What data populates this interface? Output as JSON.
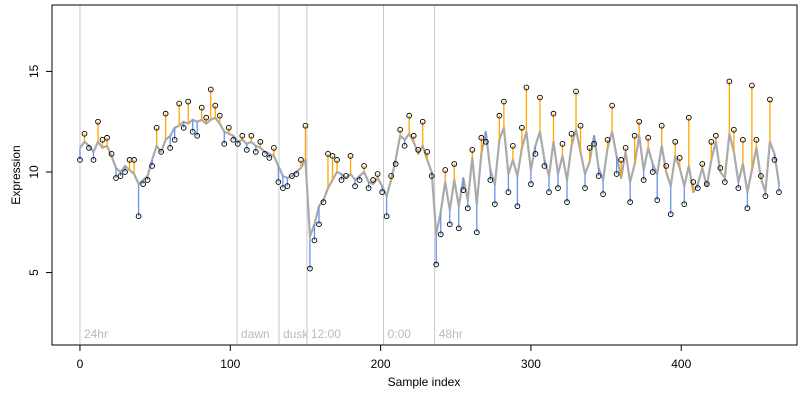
{
  "chart_data": {
    "type": "residual-scatter",
    "x_label": "Sample index",
    "y_label": "Expression",
    "xlim": [
      -18.6,
      477
    ],
    "ylim": [
      1.4,
      18.3
    ],
    "xticks": [
      0,
      100,
      200,
      300,
      400
    ],
    "yticks": [
      5,
      10,
      15
    ],
    "x": [
      0,
      3,
      6,
      9,
      12,
      15,
      18,
      21,
      24,
      27,
      30,
      33,
      36,
      39,
      42,
      45,
      48,
      51,
      54,
      57,
      60,
      63,
      66,
      69,
      72,
      75,
      78,
      81,
      84,
      87,
      90,
      93,
      96,
      99,
      102,
      105,
      108,
      111,
      114,
      117,
      120,
      123,
      126,
      129,
      132,
      135,
      138,
      141,
      144,
      147,
      150,
      153,
      156,
      159,
      162,
      165,
      168,
      171,
      174,
      177,
      180,
      183,
      186,
      189,
      192,
      195,
      198,
      201,
      204,
      207,
      210,
      213,
      216,
      219,
      222,
      225,
      228,
      231,
      234,
      237,
      240,
      243,
      246,
      249,
      252,
      255,
      258,
      261,
      264,
      267,
      270,
      273,
      276,
      279,
      282,
      285,
      288,
      291,
      294,
      297,
      300,
      303,
      306,
      309,
      312,
      315,
      318,
      321,
      324,
      327,
      330,
      333,
      336,
      339,
      342,
      345,
      348,
      351,
      354,
      357,
      360,
      363,
      366,
      369,
      372,
      375,
      378,
      381,
      384,
      387,
      390,
      393,
      396,
      399,
      402,
      405,
      408,
      411,
      414,
      417,
      420,
      423,
      426,
      429,
      432,
      435,
      438,
      441,
      444,
      447,
      450,
      453,
      456,
      459,
      462,
      465
    ],
    "observed": {
      "color": "#000000",
      "values": [
        10.6,
        11.9,
        11.2,
        10.6,
        12.5,
        11.6,
        11.7,
        10.9,
        9.7,
        9.8,
        10.0,
        10.6,
        10.6,
        7.8,
        9.4,
        9.6,
        10.3,
        12.2,
        11.0,
        12.9,
        11.2,
        11.6,
        13.4,
        12.2,
        13.5,
        12.0,
        11.8,
        13.2,
        12.7,
        14.1,
        13.3,
        12.8,
        11.4,
        12.2,
        11.6,
        11.4,
        11.8,
        11.1,
        11.8,
        11.0,
        11.5,
        10.9,
        10.7,
        11.2,
        9.5,
        9.2,
        9.3,
        9.8,
        9.9,
        10.6,
        12.3,
        5.2,
        6.6,
        7.4,
        8.5,
        10.9,
        10.8,
        10.6,
        9.6,
        9.8,
        10.8,
        9.3,
        9.6,
        10.3,
        9.2,
        9.6,
        9.9,
        9.0,
        7.8,
        9.8,
        10.4,
        12.1,
        11.3,
        12.8,
        11.8,
        11.1,
        12.5,
        11.0,
        9.8,
        5.4,
        6.9,
        10.1,
        7.4,
        10.4,
        7.2,
        9.1,
        8.2,
        11.1,
        7.0,
        11.7,
        11.5,
        9.6,
        8.4,
        12.8,
        13.5,
        9.0,
        11.3,
        8.3,
        12.2,
        14.2,
        9.4,
        10.9,
        13.7,
        10.3,
        9.0,
        12.9,
        9.2,
        11.4,
        8.5,
        11.9,
        14.0,
        12.3,
        9.2,
        11.2,
        11.4,
        9.8,
        8.9,
        11.6,
        13.3,
        9.9,
        10.6,
        11.2,
        8.5,
        11.8,
        12.5,
        9.6,
        11.7,
        10.0,
        8.6,
        12.3,
        10.3,
        7.9,
        11.5,
        10.7,
        8.4,
        12.7,
        9.5,
        9.2,
        10.4,
        9.4,
        11.5,
        11.8,
        10.2,
        9.5,
        14.5,
        12.1,
        9.2,
        11.6,
        8.2,
        14.3,
        11.6,
        9.8,
        8.8,
        13.6,
        10.6,
        9.0
      ]
    },
    "fitted": {
      "color": "#aaaaaa",
      "values": [
        11.2,
        11.5,
        11.3,
        11.0,
        11.5,
        11.2,
        11.3,
        10.8,
        10.2,
        10.0,
        10.3,
        10.1,
        9.9,
        9.4,
        9.6,
        9.8,
        10.6,
        11.3,
        11.0,
        11.6,
        11.8,
        12.2,
        12.3,
        12.5,
        12.4,
        12.6,
        12.5,
        12.6,
        12.4,
        12.6,
        12.7,
        12.4,
        12.0,
        11.9,
        11.8,
        11.5,
        11.6,
        11.4,
        11.5,
        11.3,
        11.2,
        11.0,
        10.9,
        10.8,
        10.3,
        9.8,
        9.7,
        9.8,
        10.0,
        10.2,
        10.6,
        6.8,
        7.4,
        8.3,
        8.6,
        9.2,
        9.6,
        10.0,
        9.9,
        9.7,
        9.9,
        9.6,
        9.8,
        10.0,
        9.5,
        9.4,
        9.7,
        9.3,
        8.8,
        9.6,
        10.6,
        11.8,
        11.6,
        11.9,
        11.5,
        10.9,
        11.3,
        10.6,
        10.0,
        6.9,
        8.0,
        9.5,
        8.1,
        9.6,
        8.3,
        9.7,
        8.6,
        10.7,
        8.4,
        10.9,
        12.0,
        10.1,
        9.4,
        11.6,
        12.2,
        9.9,
        10.6,
        9.8,
        11.2,
        12.0,
        10.1,
        11.3,
        12.0,
        10.6,
        9.8,
        11.5,
        9.9,
        10.8,
        9.6,
        11.3,
        12.1,
        11.0,
        9.9,
        10.5,
        11.8,
        10.2,
        9.6,
        11.2,
        12.0,
        10.8,
        9.7,
        11.0,
        9.5,
        10.4,
        11.8,
        10.1,
        11.2,
        10.4,
        9.9,
        11.3,
        10.0,
        9.3,
        10.8,
        10.2,
        9.3,
        10.3,
        9.0,
        9.4,
        10.2,
        9.3,
        10.6,
        11.5,
        10.0,
        9.7,
        11.9,
        11.0,
        9.5,
        10.4,
        9.0,
        10.1,
        11.2,
        9.7,
        9.0,
        11.5,
        10.9,
        9.4
      ]
    },
    "above_color": "#ffa500",
    "below_color": "#6495ed",
    "annotation_color": "#bbbbbb",
    "annotations": [
      {
        "x": 0,
        "label": "24hr"
      },
      {
        "x": 104.5,
        "label": "dawn"
      },
      {
        "x": 132.4,
        "label": "dusk"
      },
      {
        "x": 151,
        "label": "12:00"
      },
      {
        "x": 202,
        "label": "0:00"
      },
      {
        "x": 236,
        "label": "48hr"
      }
    ]
  }
}
